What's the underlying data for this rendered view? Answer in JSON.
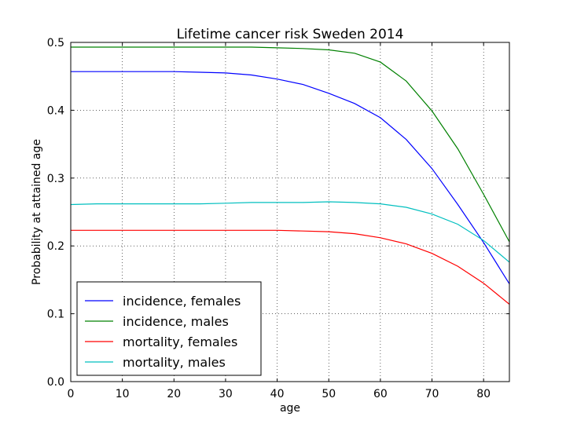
{
  "chart_data": {
    "type": "line",
    "title": "Lifetime cancer risk Sweden 2014",
    "xlabel": "age",
    "ylabel": "Probability at attained age",
    "xlim": [
      0,
      85
    ],
    "ylim": [
      0.0,
      0.5
    ],
    "xticks": [
      "0",
      "10",
      "20",
      "30",
      "40",
      "50",
      "60",
      "70",
      "80"
    ],
    "yticks": [
      "0.0",
      "0.1",
      "0.2",
      "0.3",
      "0.4",
      "0.5"
    ],
    "grid": true,
    "legend_position": "lower-left",
    "x": [
      0,
      5,
      10,
      15,
      20,
      25,
      30,
      35,
      40,
      45,
      50,
      55,
      60,
      65,
      70,
      75,
      80,
      85
    ],
    "series": [
      {
        "name": "incidence, females",
        "color": "#0000ff",
        "values": [
          0.457,
          0.457,
          0.457,
          0.457,
          0.457,
          0.456,
          0.455,
          0.452,
          0.446,
          0.438,
          0.425,
          0.41,
          0.389,
          0.357,
          0.314,
          0.261,
          0.205,
          0.144
        ]
      },
      {
        "name": "incidence, males",
        "color": "#008000",
        "values": [
          0.493,
          0.493,
          0.493,
          0.493,
          0.493,
          0.493,
          0.493,
          0.493,
          0.492,
          0.491,
          0.489,
          0.484,
          0.471,
          0.443,
          0.399,
          0.343,
          0.276,
          0.206
        ]
      },
      {
        "name": "mortality, females",
        "color": "#ff0000",
        "values": [
          0.223,
          0.223,
          0.223,
          0.223,
          0.223,
          0.223,
          0.223,
          0.223,
          0.223,
          0.222,
          0.221,
          0.218,
          0.212,
          0.203,
          0.189,
          0.17,
          0.145,
          0.114
        ]
      },
      {
        "name": "mortality, males",
        "color": "#00bfbf",
        "values": [
          0.261,
          0.262,
          0.262,
          0.262,
          0.262,
          0.262,
          0.263,
          0.264,
          0.264,
          0.264,
          0.265,
          0.264,
          0.262,
          0.257,
          0.247,
          0.232,
          0.208,
          0.176
        ]
      }
    ]
  }
}
